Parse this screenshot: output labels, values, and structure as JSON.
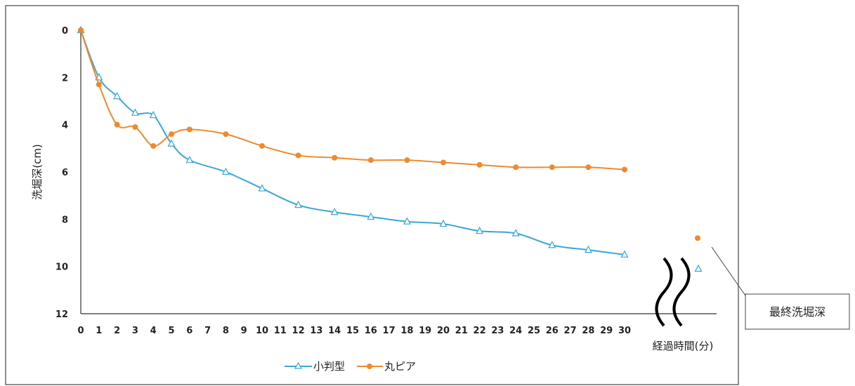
{
  "chart_data": {
    "type": "line",
    "title": "",
    "xlabel": "経過時間(分)",
    "ylabel": "洗堀深(cm)",
    "y_inverted": true,
    "ylim": [
      0,
      12
    ],
    "y_ticks": [
      0,
      2,
      4,
      6,
      8,
      10,
      12
    ],
    "x_ticks": [
      "0",
      "1",
      "2",
      "3",
      "4",
      "5",
      "6",
      "7",
      "8",
      "9",
      "10",
      "11",
      "12",
      "13",
      "14",
      "15",
      "16",
      "17",
      "18",
      "19",
      "20",
      "21",
      "22",
      "23",
      "24",
      "25",
      "26",
      "27",
      "28",
      "29",
      "30"
    ],
    "series": [
      {
        "name": "小判型",
        "color": "#3aa7d6",
        "marker": "triangle",
        "x": [
          0,
          1,
          2,
          3,
          4,
          5,
          6,
          8,
          10,
          12,
          14,
          16,
          18,
          20,
          22,
          24,
          26,
          28,
          30
        ],
        "y": [
          0,
          2.0,
          2.8,
          3.5,
          3.6,
          4.8,
          5.5,
          6.0,
          6.7,
          7.4,
          7.7,
          7.9,
          8.1,
          8.2,
          8.5,
          8.6,
          9.1,
          9.3,
          9.5
        ],
        "final_value": 10.1
      },
      {
        "name": "丸ピア",
        "color": "#ef8a2c",
        "marker": "circle",
        "x": [
          0,
          1,
          2,
          3,
          4,
          5,
          6,
          8,
          10,
          12,
          14,
          16,
          18,
          20,
          22,
          24,
          26,
          28,
          30
        ],
        "y": [
          0,
          2.3,
          4.0,
          4.1,
          4.9,
          4.4,
          4.2,
          4.4,
          4.9,
          5.3,
          5.4,
          5.5,
          5.5,
          5.6,
          5.7,
          5.8,
          5.8,
          5.8,
          5.9
        ],
        "final_value": 8.8
      }
    ],
    "legend_position": "bottom",
    "callout": "最終洗堀深",
    "axis_break_symbol": "wave"
  }
}
